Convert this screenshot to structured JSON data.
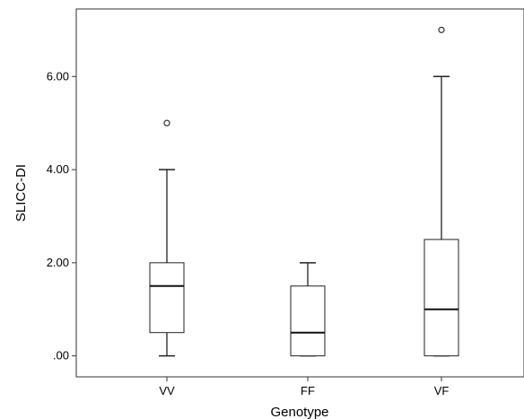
{
  "chart_data": {
    "type": "box",
    "title": "",
    "xlabel": "Genotype",
    "ylabel": "SLICC-DI",
    "ylim": [
      -0.45,
      7.45
    ],
    "y_ticks": [
      0,
      2,
      4,
      6
    ],
    "y_tick_labels": [
      ".00",
      "2.00",
      "4.00",
      "6.00"
    ],
    "categories": [
      "VV",
      "FF",
      "VF"
    ],
    "boxes": [
      {
        "category": "VV",
        "min": 0,
        "q1": 0.5,
        "median": 1.5,
        "q3": 2,
        "max": 4,
        "outliers": [
          5
        ]
      },
      {
        "category": "FF",
        "min": 0,
        "q1": 0,
        "median": 0.5,
        "q3": 1.5,
        "max": 2,
        "outliers": []
      },
      {
        "category": "VF",
        "min": 0,
        "q1": 0,
        "median": 1,
        "q3": 2.5,
        "max": 6,
        "outliers": [
          7
        ]
      }
    ],
    "grid": false,
    "legend": "none"
  }
}
